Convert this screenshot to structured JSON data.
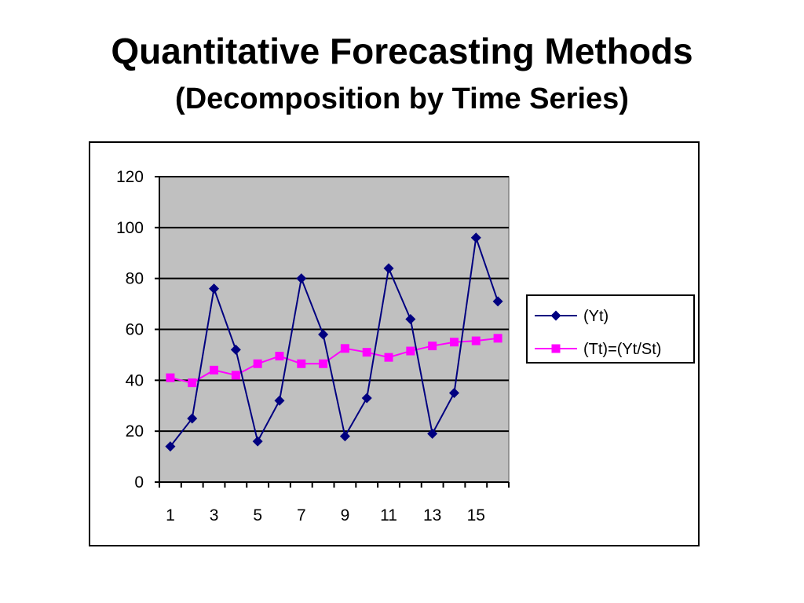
{
  "slide": {
    "title": "Quantitative Forecasting Methods",
    "subtitle": "(Decomposition by Time Series)"
  },
  "chart_data": {
    "type": "line",
    "x": [
      1,
      2,
      3,
      4,
      5,
      6,
      7,
      8,
      9,
      10,
      11,
      12,
      13,
      14,
      15,
      16
    ],
    "x_tick_labels": [
      "1",
      "3",
      "5",
      "7",
      "9",
      "11",
      "13",
      "15"
    ],
    "ylim": [
      0,
      120
    ],
    "y_ticks": [
      0,
      20,
      40,
      60,
      80,
      100,
      120
    ],
    "grid": "horizontal",
    "plot_background": "#c0c0c0",
    "legend_position": "right",
    "series": [
      {
        "name": "(Yt)",
        "color": "#000080",
        "marker": "diamond",
        "values": [
          14,
          25,
          76,
          52,
          16,
          32,
          80,
          58,
          18,
          33,
          84,
          64,
          19,
          35,
          96,
          71
        ]
      },
      {
        "name": "(Tt)=(Yt/St)",
        "color": "#ff00ff",
        "marker": "square",
        "values": [
          41,
          39,
          44,
          42,
          46.5,
          49.5,
          46.5,
          46.5,
          52.5,
          51,
          49,
          51.5,
          53.5,
          55,
          55.5,
          56.5
        ]
      }
    ]
  }
}
